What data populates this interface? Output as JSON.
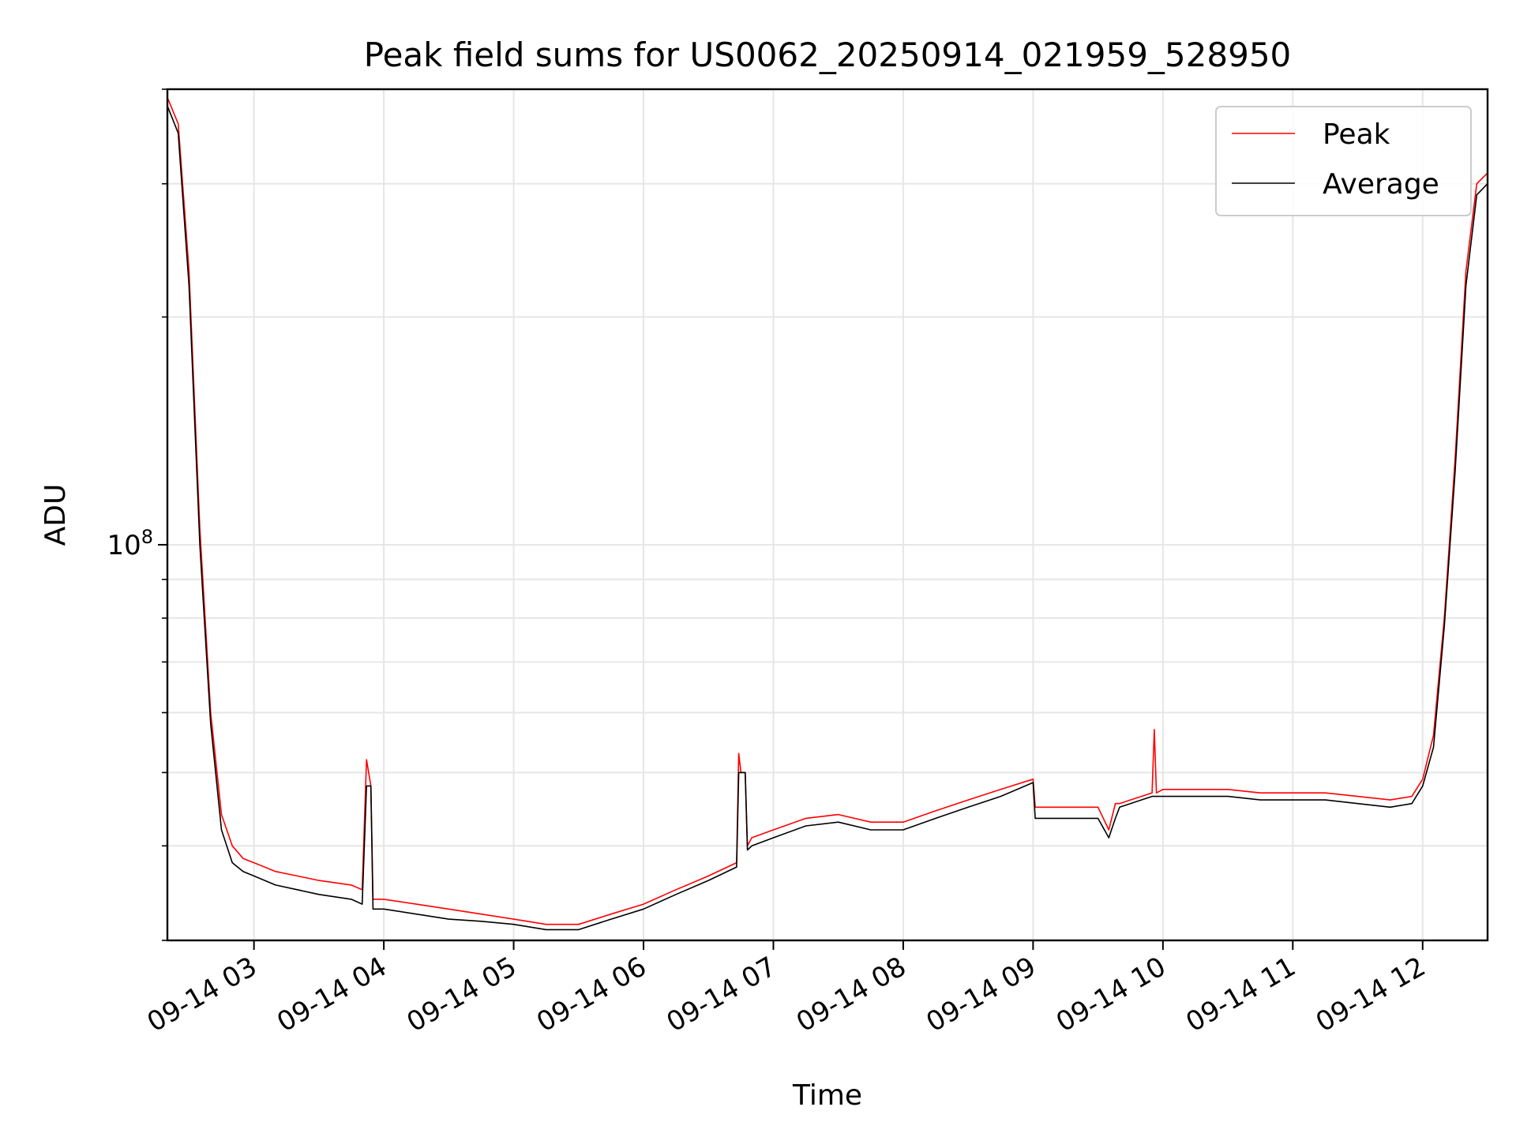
{
  "chart_data": {
    "type": "line",
    "title": "Peak field sums for US0062_20250914_021959_528950",
    "xlabel": "Time",
    "ylabel": "ADU",
    "x_ticks": [
      "09-14 03",
      "09-14 04",
      "09-14 05",
      "09-14 06",
      "09-14 07",
      "09-14 08",
      "09-14 09",
      "09-14 10",
      "09-14 11",
      "09-14 12"
    ],
    "y_ticks": [
      {
        "base": "10",
        "exp": "8",
        "value": 100000000
      }
    ],
    "y_scale": "log",
    "xlim": [
      "2025-09-14 02:20",
      "2025-09-14 12:30"
    ],
    "ylim": [
      30000000,
      400000000
    ],
    "grid": true,
    "legend": {
      "placement": "top-right",
      "entries": [
        "Peak",
        "Average"
      ]
    },
    "series": [
      {
        "name": "Peak",
        "color": "#ff0000",
        "x": [
          "02:20",
          "02:25",
          "02:30",
          "02:35",
          "02:40",
          "02:45",
          "02:50",
          "02:55",
          "03:00",
          "03:10",
          "03:20",
          "03:30",
          "03:45",
          "03:50",
          "03:52",
          "03:54",
          "03:55",
          "04:00",
          "04:15",
          "04:30",
          "04:45",
          "05:00",
          "05:15",
          "05:30",
          "05:45",
          "06:00",
          "06:15",
          "06:30",
          "06:43",
          "06:44",
          "06:45",
          "06:47",
          "06:48",
          "06:50",
          "07:00",
          "07:15",
          "07:30",
          "07:45",
          "08:00",
          "08:15",
          "08:30",
          "08:45",
          "09:00",
          "09:01",
          "09:15",
          "09:30",
          "09:35",
          "09:38",
          "09:40",
          "09:45",
          "09:55",
          "09:56",
          "09:57",
          "10:00",
          "10:15",
          "10:30",
          "10:45",
          "11:00",
          "11:15",
          "11:30",
          "11:45",
          "11:55",
          "12:00",
          "12:05",
          "12:10",
          "12:15",
          "12:20",
          "12:25",
          "12:30"
        ],
        "y": [
          390000000,
          360000000,
          230000000,
          105000000,
          60000000,
          44000000,
          40000000,
          38500000,
          38000000,
          37000000,
          36500000,
          36000000,
          35500000,
          35000000,
          52000000,
          48000000,
          34000000,
          34000000,
          33500000,
          33000000,
          32500000,
          32000000,
          31500000,
          31500000,
          32500000,
          33500000,
          35000000,
          36500000,
          38000000,
          53000000,
          50000000,
          50000000,
          40000000,
          41000000,
          42000000,
          43500000,
          44000000,
          43000000,
          43000000,
          44500000,
          46000000,
          47500000,
          49000000,
          45000000,
          45000000,
          45000000,
          42000000,
          45500000,
          45500000,
          46000000,
          47000000,
          57000000,
          47000000,
          47500000,
          47500000,
          47500000,
          47000000,
          47000000,
          47000000,
          46500000,
          46000000,
          46500000,
          49000000,
          56000000,
          80000000,
          130000000,
          230000000,
          300000000,
          310000000
        ]
      },
      {
        "name": "Average",
        "color": "#000000",
        "x": [
          "02:20",
          "02:25",
          "02:30",
          "02:35",
          "02:40",
          "02:45",
          "02:50",
          "02:55",
          "03:00",
          "03:10",
          "03:20",
          "03:30",
          "03:45",
          "03:50",
          "03:52",
          "03:54",
          "03:55",
          "04:00",
          "04:15",
          "04:30",
          "04:45",
          "05:00",
          "05:15",
          "05:30",
          "05:45",
          "06:00",
          "06:15",
          "06:30",
          "06:43",
          "06:44",
          "06:45",
          "06:47",
          "06:48",
          "06:50",
          "07:00",
          "07:15",
          "07:30",
          "07:45",
          "08:00",
          "08:15",
          "08:30",
          "08:45",
          "09:00",
          "09:01",
          "09:15",
          "09:30",
          "09:35",
          "09:38",
          "09:40",
          "09:45",
          "09:55",
          "09:56",
          "09:57",
          "10:00",
          "10:15",
          "10:30",
          "10:45",
          "11:00",
          "11:15",
          "11:30",
          "11:45",
          "11:55",
          "12:00",
          "12:05",
          "12:10",
          "12:15",
          "12:20",
          "12:25",
          "12:30"
        ],
        "y": [
          380000000,
          350000000,
          220000000,
          100000000,
          58000000,
          42000000,
          38000000,
          37000000,
          36500000,
          35500000,
          35000000,
          34500000,
          34000000,
          33500000,
          48000000,
          48000000,
          33000000,
          33000000,
          32500000,
          32000000,
          31800000,
          31500000,
          31000000,
          31000000,
          32000000,
          33000000,
          34500000,
          36000000,
          37500000,
          50000000,
          50000000,
          50000000,
          39500000,
          40000000,
          41000000,
          42500000,
          43000000,
          42000000,
          42000000,
          43500000,
          45000000,
          46500000,
          48500000,
          43500000,
          43500000,
          43500000,
          41000000,
          43500000,
          45000000,
          45500000,
          46500000,
          46500000,
          46500000,
          46500000,
          46500000,
          46500000,
          46000000,
          46000000,
          46000000,
          45500000,
          45000000,
          45500000,
          48000000,
          54000000,
          78000000,
          125000000,
          220000000,
          290000000,
          300000000
        ]
      }
    ]
  }
}
